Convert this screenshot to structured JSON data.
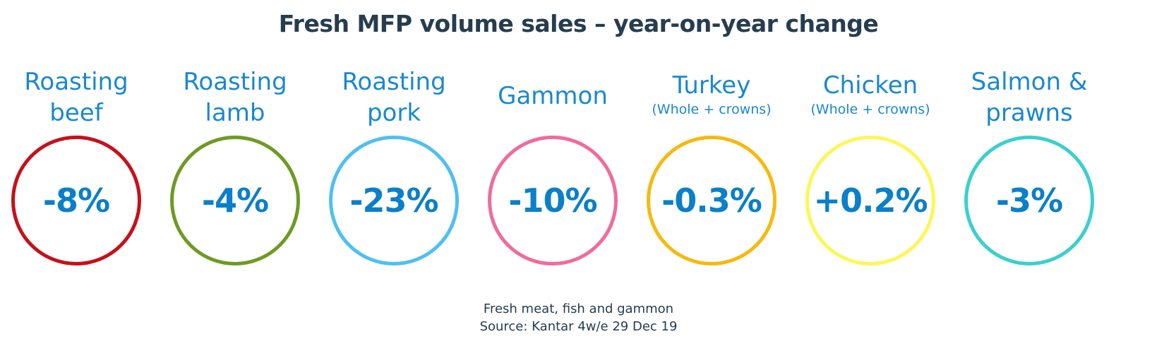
{
  "title": "Fresh MFP volume sales – year-on-year change",
  "items": [
    {
      "label": "Roasting beef",
      "line1": "Roasting",
      "line2": "beef",
      "sub": "",
      "value": "-8%",
      "ring_color": "#c4111b"
    },
    {
      "label": "Roasting lamb",
      "line1": "Roasting",
      "line2": "lamb",
      "sub": "",
      "value": "-4%",
      "ring_color": "#6e9a24"
    },
    {
      "label": "Roasting pork",
      "line1": "Roasting",
      "line2": "pork",
      "sub": "",
      "value": "-23%",
      "ring_color": "#4fbff2"
    },
    {
      "label": "Gammon",
      "line1": "Gammon",
      "line2": "",
      "sub": "",
      "value": "-10%",
      "ring_color": "#f06b9c"
    },
    {
      "label": "Turkey",
      "line1": "Turkey",
      "line2": "",
      "sub": "(Whole + crowns)",
      "value": "-0.3%",
      "ring_color": "#f7b90f"
    },
    {
      "label": "Chicken",
      "line1": "Chicken",
      "line2": "",
      "sub": "(Whole + crowns)",
      "value": "+0.2%",
      "ring_color": "#fdf65a"
    },
    {
      "label": "Salmon & prawns",
      "line1": "Salmon &",
      "line2": "prawns",
      "sub": "",
      "value": "-3%",
      "ring_color": "#3bcfcf"
    }
  ],
  "footer": {
    "line1": "Fresh meat, fish and gammon",
    "line2": "Source: Kantar 4w/e 29 Dec 19"
  }
}
